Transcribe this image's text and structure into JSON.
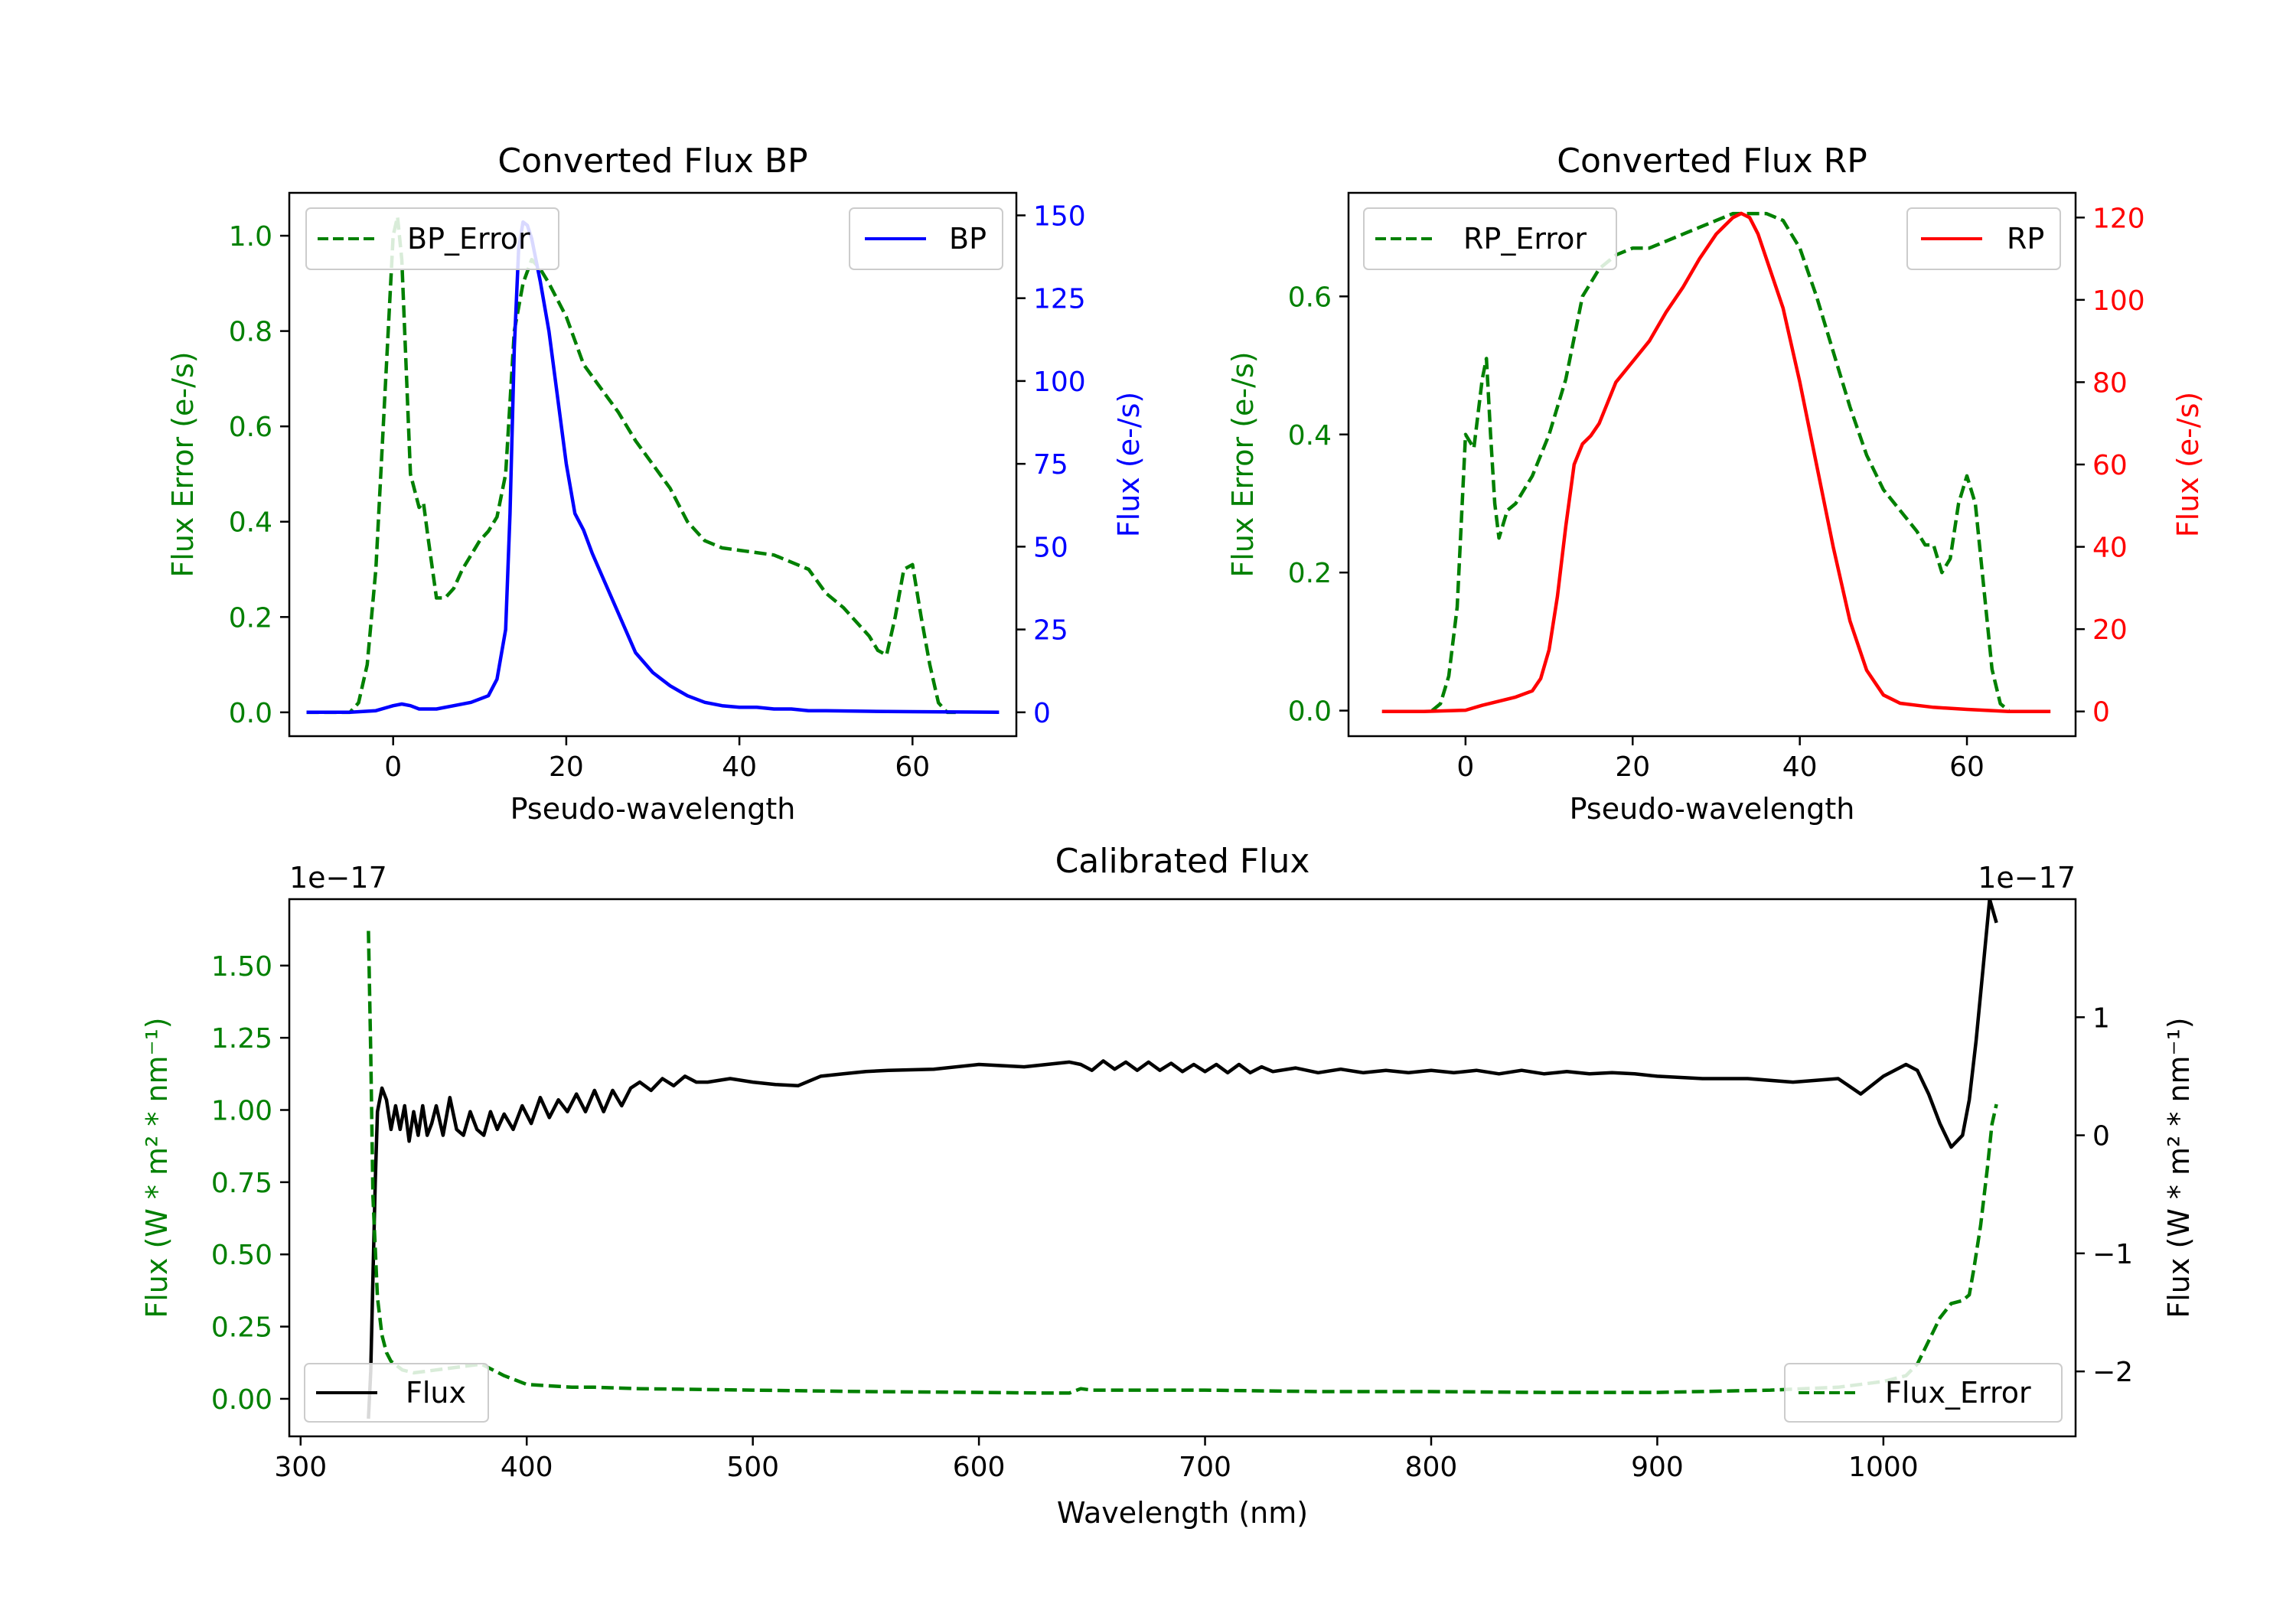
{
  "chart_data": [
    {
      "id": "bp",
      "type": "line",
      "title": "Converted Flux BP",
      "xlabel": "Pseudo-wavelength",
      "ylabel_left": "Flux Error (e-/s)",
      "ylabel_right": "Flux (e-/s)",
      "xlim": [
        -12,
        72
      ],
      "ylim_left": [
        -0.05,
        1.09
      ],
      "ylim_right": [
        -7.2,
        156.8
      ],
      "xticks": [
        0,
        20,
        40,
        60
      ],
      "yticks_left": [
        0.0,
        0.2,
        0.4,
        0.6,
        0.8,
        1.0
      ],
      "ytick_labels_left": [
        "0.0",
        "0.2",
        "0.4",
        "0.6",
        "0.8",
        "1.0"
      ],
      "yticks_right": [
        0,
        25,
        50,
        75,
        100,
        125,
        150
      ],
      "ytick_labels_right": [
        "0",
        "25",
        "50",
        "75",
        "100",
        "125",
        "150"
      ],
      "legend_left": "top-left",
      "legend_right": "top-right",
      "colors": {
        "left_axis": "#008000",
        "right_axis": "#0000ff"
      },
      "series": [
        {
          "name": "BP_Error",
          "axis": "left",
          "color": "#008000",
          "style": "dashed",
          "x": [
            -10,
            -5,
            -4,
            -3,
            -2,
            -1,
            0,
            0.5,
            1,
            2,
            3,
            3.5,
            4,
            5,
            6,
            7,
            8,
            9,
            10,
            11,
            12,
            13,
            14,
            15,
            16,
            17,
            18,
            20,
            22,
            24,
            26,
            28,
            30,
            32,
            34,
            36,
            38,
            40,
            44,
            48,
            50,
            52,
            55,
            56,
            57,
            58,
            59,
            60,
            61,
            62,
            63,
            64,
            65
          ],
          "y": [
            0,
            0,
            0.02,
            0.1,
            0.3,
            0.65,
            1.0,
            1.04,
            0.95,
            0.5,
            0.43,
            0.44,
            0.37,
            0.24,
            0.24,
            0.26,
            0.3,
            0.33,
            0.36,
            0.38,
            0.41,
            0.5,
            0.8,
            0.9,
            0.95,
            0.93,
            0.9,
            0.83,
            0.73,
            0.68,
            0.63,
            0.57,
            0.52,
            0.47,
            0.4,
            0.36,
            0.345,
            0.34,
            0.33,
            0.3,
            0.25,
            0.22,
            0.16,
            0.13,
            0.12,
            0.2,
            0.3,
            0.31,
            0.2,
            0.1,
            0.02,
            0,
            0
          ]
        },
        {
          "name": "BP",
          "axis": "right",
          "color": "#0000ff",
          "style": "solid",
          "x": [
            -10,
            -5,
            -2,
            0,
            1,
            2,
            3,
            5,
            7,
            9,
            11,
            12,
            13,
            13.5,
            14,
            14.5,
            15,
            15.5,
            16,
            17,
            18,
            19,
            20,
            21,
            22,
            23,
            24,
            26,
            28,
            30,
            32,
            34,
            36,
            38,
            40,
            42,
            44,
            46,
            48,
            50,
            55,
            60,
            65,
            70
          ],
          "y": [
            0,
            0,
            0.5,
            2,
            2.5,
            2,
            1,
            1,
            2,
            3,
            5,
            10,
            25,
            60,
            110,
            140,
            148,
            147,
            143,
            130,
            115,
            95,
            75,
            60,
            55,
            48,
            42,
            30,
            18,
            12,
            8,
            5,
            3,
            2,
            1.5,
            1.5,
            1,
            1,
            0.5,
            0.5,
            0.3,
            0.2,
            0.1,
            0
          ]
        }
      ]
    },
    {
      "id": "rp",
      "type": "line",
      "title": "Converted Flux RP",
      "xlabel": "Pseudo-wavelength",
      "ylabel_left": "Flux Error (e-/s)",
      "ylabel_right": "Flux (e-/s)",
      "xlim": [
        -14,
        73
      ],
      "ylim_left": [
        -0.037,
        0.75
      ],
      "ylim_right": [
        -6,
        126
      ],
      "xticks": [
        0,
        20,
        40,
        60
      ],
      "yticks_left": [
        0.0,
        0.2,
        0.4,
        0.6
      ],
      "ytick_labels_left": [
        "0.0",
        "0.2",
        "0.4",
        "0.6"
      ],
      "yticks_right": [
        0,
        20,
        40,
        60,
        80,
        100,
        120
      ],
      "ytick_labels_right": [
        "0",
        "20",
        "40",
        "60",
        "80",
        "100",
        "120"
      ],
      "legend_left": "top-left",
      "legend_right": "top-right",
      "colors": {
        "left_axis": "#008000",
        "right_axis": "#ff0000"
      },
      "series": [
        {
          "name": "RP_Error",
          "axis": "left",
          "color": "#008000",
          "style": "dashed",
          "x": [
            -4,
            -3,
            -2,
            -1,
            0,
            1,
            2,
            2.5,
            3,
            3.5,
            4,
            5,
            6,
            8,
            10,
            12,
            13,
            14,
            15,
            16,
            18,
            20,
            22,
            24,
            26,
            28,
            30,
            32,
            34,
            36,
            38,
            40,
            42,
            44,
            46,
            48,
            50,
            52,
            54,
            55,
            56,
            57,
            58,
            59,
            60,
            61,
            62,
            63,
            64,
            65
          ],
          "y": [
            0,
            0.01,
            0.05,
            0.15,
            0.4,
            0.38,
            0.48,
            0.51,
            0.4,
            0.3,
            0.25,
            0.29,
            0.3,
            0.34,
            0.4,
            0.48,
            0.54,
            0.6,
            0.62,
            0.64,
            0.66,
            0.67,
            0.67,
            0.68,
            0.69,
            0.7,
            0.71,
            0.72,
            0.72,
            0.72,
            0.71,
            0.67,
            0.6,
            0.52,
            0.44,
            0.37,
            0.32,
            0.29,
            0.26,
            0.24,
            0.24,
            0.2,
            0.22,
            0.3,
            0.34,
            0.3,
            0.18,
            0.06,
            0.01,
            0
          ]
        },
        {
          "name": "RP",
          "axis": "right",
          "color": "#ff0000",
          "style": "solid",
          "x": [
            -10,
            -5,
            0,
            2,
            4,
            6,
            8,
            9,
            10,
            11,
            12,
            13,
            14,
            15,
            16,
            17,
            18,
            20,
            22,
            24,
            26,
            28,
            30,
            31,
            32,
            33,
            34,
            35,
            36,
            38,
            40,
            42,
            44,
            46,
            48,
            50,
            52,
            54,
            56,
            60,
            65,
            70
          ],
          "y": [
            0,
            0,
            0.3,
            1.5,
            2.5,
            3.5,
            5,
            8,
            15,
            28,
            45,
            60,
            65,
            67,
            70,
            75,
            80,
            85,
            90,
            97,
            103,
            110,
            116,
            118,
            120,
            121,
            120,
            116,
            110,
            98,
            80,
            60,
            40,
            22,
            10,
            4,
            2,
            1.5,
            1,
            0.5,
            0,
            0
          ]
        }
      ]
    },
    {
      "id": "calibrated",
      "type": "line",
      "title": "Calibrated Flux",
      "xlabel": "Wavelength (nm)",
      "ylabel_left": "Flux (W * m² * nm⁻¹)",
      "ylabel_right": "Flux (W * m² * nm⁻¹)",
      "offset_left": "1e−17",
      "offset_right": "1e−17",
      "xlim": [
        295,
        1085
      ],
      "ylim_left": [
        -0.13,
        1.73
      ],
      "ylim_right": [
        -2.55,
        2.0
      ],
      "xticks": [
        300,
        400,
        500,
        600,
        700,
        800,
        900,
        1000
      ],
      "yticks_left": [
        0.0,
        0.25,
        0.5,
        0.75,
        1.0,
        1.25,
        1.5
      ],
      "ytick_labels_left": [
        "0.00",
        "0.25",
        "0.50",
        "0.75",
        "1.00",
        "1.25",
        "1.50"
      ],
      "yticks_right": [
        -2,
        -1,
        0,
        1
      ],
      "ytick_labels_right": [
        "−2",
        "−1",
        "0",
        "1"
      ],
      "legend_left": "bottom-left",
      "legend_right": "bottom-right",
      "colors": {
        "left_axis": "#008000",
        "right_axis": "#000000"
      },
      "series": [
        {
          "name": "Flux",
          "axis": "right",
          "color": "#000000",
          "style": "solid",
          "x": [
            330,
            331,
            332,
            333,
            334,
            336,
            338,
            340,
            342,
            344,
            346,
            348,
            350,
            352,
            354,
            356,
            358,
            360,
            363,
            366,
            369,
            372,
            375,
            378,
            381,
            384,
            387,
            390,
            394,
            398,
            402,
            406,
            410,
            414,
            418,
            422,
            426,
            430,
            434,
            438,
            442,
            446,
            450,
            455,
            460,
            465,
            470,
            475,
            480,
            490,
            500,
            510,
            520,
            530,
            540,
            550,
            560,
            580,
            600,
            620,
            640,
            645,
            650,
            655,
            660,
            665,
            670,
            675,
            680,
            685,
            690,
            695,
            700,
            705,
            710,
            715,
            720,
            725,
            730,
            740,
            750,
            760,
            770,
            780,
            790,
            800,
            810,
            820,
            830,
            840,
            850,
            860,
            870,
            880,
            890,
            900,
            920,
            940,
            960,
            980,
            990,
            1000,
            1010,
            1015,
            1020,
            1025,
            1030,
            1035,
            1038,
            1041,
            1044,
            1047,
            1050
          ],
          "y": [
            -2.4,
            -2.0,
            -1.2,
            -0.4,
            0.2,
            0.4,
            0.3,
            0.05,
            0.25,
            0.05,
            0.25,
            -0.05,
            0.2,
            0.0,
            0.25,
            0.0,
            0.1,
            0.25,
            0.0,
            0.32,
            0.05,
            0.0,
            0.2,
            0.05,
            0.0,
            0.2,
            0.05,
            0.18,
            0.05,
            0.25,
            0.1,
            0.32,
            0.15,
            0.3,
            0.2,
            0.35,
            0.2,
            0.38,
            0.2,
            0.38,
            0.25,
            0.4,
            0.45,
            0.38,
            0.48,
            0.42,
            0.5,
            0.45,
            0.45,
            0.48,
            0.45,
            0.43,
            0.42,
            0.5,
            0.52,
            0.54,
            0.55,
            0.56,
            0.6,
            0.58,
            0.62,
            0.6,
            0.55,
            0.63,
            0.56,
            0.62,
            0.55,
            0.62,
            0.55,
            0.61,
            0.54,
            0.6,
            0.54,
            0.6,
            0.53,
            0.6,
            0.53,
            0.58,
            0.54,
            0.57,
            0.53,
            0.56,
            0.53,
            0.55,
            0.53,
            0.55,
            0.53,
            0.55,
            0.52,
            0.55,
            0.52,
            0.54,
            0.52,
            0.53,
            0.52,
            0.5,
            0.48,
            0.48,
            0.45,
            0.48,
            0.35,
            0.5,
            0.6,
            0.55,
            0.35,
            0.1,
            -0.1,
            0.0,
            0.3,
            0.8,
            1.4,
            2.0,
            1.8
          ],
          "y_max_draw": 1.8
        },
        {
          "name": "Flux_Error",
          "axis": "left",
          "color": "#008000",
          "style": "dashed",
          "x": [
            330,
            331,
            332,
            334,
            336,
            338,
            340,
            345,
            350,
            360,
            370,
            380,
            390,
            400,
            410,
            420,
            430,
            450,
            500,
            550,
            600,
            630,
            640,
            645,
            650,
            700,
            750,
            800,
            850,
            900,
            950,
            980,
            1000,
            1010,
            1015,
            1020,
            1025,
            1030,
            1035,
            1038,
            1040,
            1043,
            1046,
            1048,
            1050
          ],
          "y": [
            1.62,
            1.2,
            0.7,
            0.35,
            0.22,
            0.16,
            0.13,
            0.1,
            0.09,
            0.1,
            0.11,
            0.12,
            0.08,
            0.05,
            0.045,
            0.04,
            0.04,
            0.035,
            0.03,
            0.025,
            0.022,
            0.02,
            0.02,
            0.035,
            0.03,
            0.03,
            0.025,
            0.025,
            0.022,
            0.022,
            0.03,
            0.04,
            0.06,
            0.08,
            0.12,
            0.2,
            0.28,
            0.33,
            0.34,
            0.36,
            0.45,
            0.6,
            0.8,
            0.95,
            1.02
          ]
        }
      ]
    }
  ]
}
